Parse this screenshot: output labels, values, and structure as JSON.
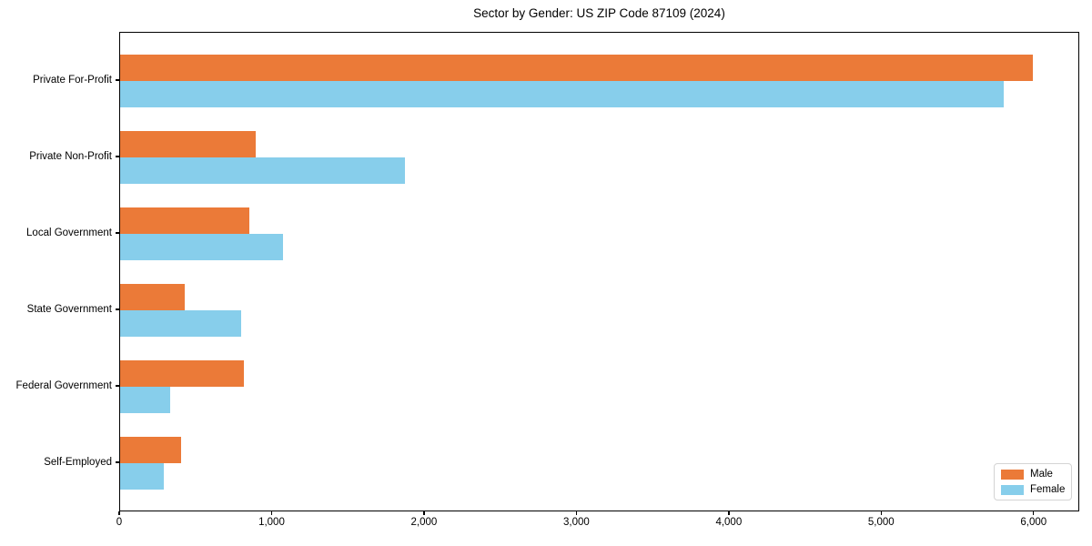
{
  "title": "Sector by Gender: US ZIP Code 87109 (2024)",
  "legend": {
    "position": "lower right",
    "entries": [
      {
        "label": "Male",
        "color": "#EB7A38"
      },
      {
        "label": "Female",
        "color": "#87CEEB"
      }
    ]
  },
  "chart_data": {
    "type": "bar",
    "orientation": "horizontal",
    "title": "Sector by Gender: US ZIP Code 87109 (2024)",
    "xlabel": "",
    "ylabel": "",
    "grid": false,
    "legend_position": "lower right",
    "xlim": [
      0,
      6300
    ],
    "categories": [
      "Private For-Profit",
      "Private Non-Profit",
      "Local Government",
      "State Government",
      "Federal Government",
      "Self-Employed"
    ],
    "series": [
      {
        "name": "Male",
        "color": "#EB7A38",
        "values": [
          5990,
          890,
          845,
          425,
          815,
          400
        ]
      },
      {
        "name": "Female",
        "color": "#87CEEB",
        "values": [
          5800,
          1870,
          1070,
          795,
          330,
          285
        ]
      }
    ],
    "x_ticks": [
      {
        "value": 0,
        "label": "0"
      },
      {
        "value": 1000,
        "label": "1,000"
      },
      {
        "value": 2000,
        "label": "2,000"
      },
      {
        "value": 3000,
        "label": "3,000"
      },
      {
        "value": 4000,
        "label": "4,000"
      },
      {
        "value": 5000,
        "label": "5,000"
      },
      {
        "value": 6000,
        "label": "6,000"
      }
    ]
  }
}
